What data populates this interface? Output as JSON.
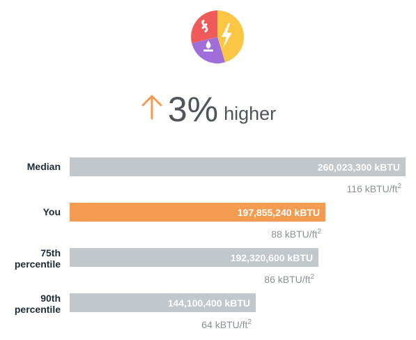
{
  "headline": {
    "direction_icon": "arrow-up-icon",
    "percent": "3%",
    "word": "higher"
  },
  "logo": {
    "icon": "energy-pie-logo-icon",
    "colors": {
      "red": "#ef5b5b",
      "yellow": "#fcc645",
      "purple": "#a06ed8"
    }
  },
  "colors": {
    "bar_default": "#c2c7cb",
    "bar_highlight": "#f39b50",
    "arrow": "#f39b50"
  },
  "chart_data": {
    "type": "bar",
    "orientation": "horizontal",
    "categories": [
      "Median",
      "You",
      "75th\npercentile",
      "90th\npercentile"
    ],
    "values": [
      260023300,
      197855240,
      192320600,
      144100400
    ],
    "value_labels": [
      "260,023,300 kBTU",
      "197,855,240 kBTU",
      "192,320,600 kBTU",
      "144,100,400 kBTU"
    ],
    "intensity_values": [
      116,
      88,
      86,
      64
    ],
    "intensity_unit": "kBTU/ft",
    "intensity_unit_superscript": "2",
    "highlight_index": 1,
    "xlim": [
      0,
      260023300
    ],
    "grid": false,
    "legend": "none"
  }
}
